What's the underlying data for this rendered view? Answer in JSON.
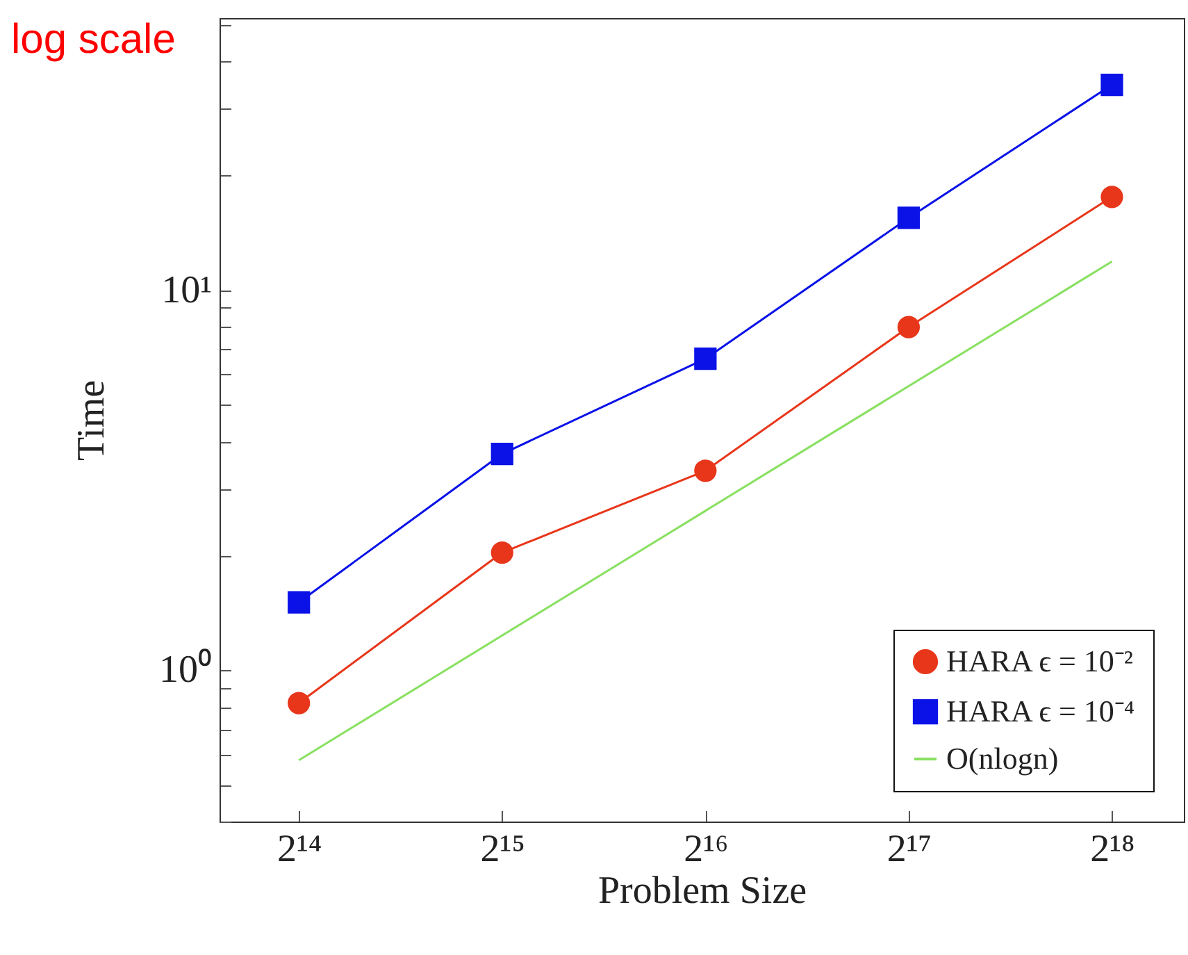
{
  "chart_data": {
    "type": "line",
    "xlabel": "Problem Size",
    "ylabel": "Time",
    "annotations": [
      "log scale"
    ],
    "log": "xy",
    "legend": "bottom right",
    "grid": false,
    "xlim": [
      12500,
      335000
    ],
    "xticks": [
      {
        "value": 16384,
        "label": "2¹⁴"
      },
      {
        "value": 32768,
        "label": "2¹⁵"
      },
      {
        "value": 65536,
        "label": "2¹⁶"
      },
      {
        "value": 131072,
        "label": "2¹⁷"
      },
      {
        "value": 262144,
        "label": "2¹⁸"
      }
    ],
    "ylim": [
      0.4,
      52
    ],
    "yticks": [
      {
        "value": 0.4,
        "label": null
      },
      {
        "value": 0.5,
        "label": null
      },
      {
        "value": 0.6,
        "label": null
      },
      {
        "value": 0.7,
        "label": null
      },
      {
        "value": 0.8,
        "label": null
      },
      {
        "value": 0.9,
        "label": null
      },
      {
        "value": 1,
        "label": "10⁰"
      },
      {
        "value": 2,
        "label": null
      },
      {
        "value": 3,
        "label": null
      },
      {
        "value": 4,
        "label": null
      },
      {
        "value": 5,
        "label": null
      },
      {
        "value": 6,
        "label": null
      },
      {
        "value": 7,
        "label": null
      },
      {
        "value": 8,
        "label": null
      },
      {
        "value": 9,
        "label": null
      },
      {
        "value": 10,
        "label": "10¹"
      },
      {
        "value": 20,
        "label": null
      },
      {
        "value": 30,
        "label": null
      },
      {
        "value": 40,
        "label": null
      },
      {
        "value": 50,
        "label": null
      }
    ],
    "series": [
      {
        "name": "HARA ϵ = 10⁻²",
        "color": "#e8361a",
        "marker": "circle",
        "x": [
          16384,
          32768,
          65536,
          131072,
          262144
        ],
        "values": [
          0.82,
          2.04,
          3.35,
          8.0,
          17.6
        ]
      },
      {
        "name": "HARA ϵ = 10⁻⁴",
        "color": "#0a12e8",
        "marker": "square",
        "x": [
          16384,
          32768,
          65536,
          131072,
          262144
        ],
        "values": [
          1.51,
          3.71,
          6.6,
          15.5,
          34.7
        ]
      },
      {
        "name": "O(nlogn)",
        "color": "#88e060",
        "marker": "none",
        "x": [
          16384,
          262144
        ],
        "values": [
          0.58,
          11.9
        ]
      }
    ]
  }
}
